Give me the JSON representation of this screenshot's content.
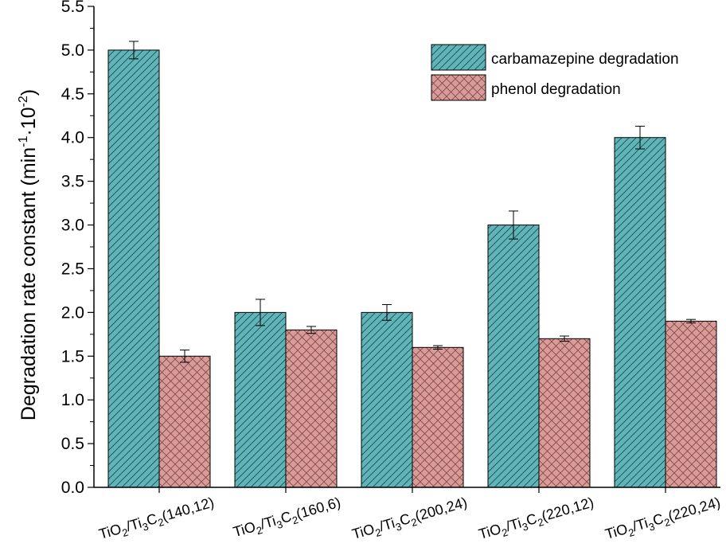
{
  "chart_data": {
    "type": "bar",
    "title": "",
    "ylabel_parts": [
      "Degradation rate constant (min",
      "-1",
      "·10",
      "-2",
      ")"
    ],
    "xlabel": "",
    "ylim": [
      0,
      5.5
    ],
    "y_ticks": [
      "0.0",
      "0.5",
      "1.0",
      "1.5",
      "2.0",
      "2.5",
      "3.0",
      "3.5",
      "4.0",
      "4.5",
      "5.0",
      "5.5"
    ],
    "categories": [
      {
        "parts": [
          "TiO",
          "2",
          "/Ti",
          "3",
          "C",
          "2",
          "(140,12)"
        ]
      },
      {
        "parts": [
          "TiO",
          "2",
          "/Ti",
          "3",
          "C",
          "2",
          "(160,6)"
        ]
      },
      {
        "parts": [
          "TiO",
          "2",
          "/Ti",
          "3",
          "C",
          "2",
          "(200,24)"
        ]
      },
      {
        "parts": [
          "TiO",
          "2",
          "/Ti",
          "3",
          "C",
          "2",
          "(220,12)"
        ]
      },
      {
        "parts": [
          "TiO",
          "2",
          "/Ti",
          "3",
          "C",
          "2",
          "(220,24)"
        ]
      }
    ],
    "series": [
      {
        "name": "carbamazepine degradation",
        "values": [
          5.0,
          2.0,
          2.0,
          3.0,
          4.0
        ],
        "errors": [
          0.1,
          0.15,
          0.09,
          0.16,
          0.13
        ],
        "color": "#5fb5b8",
        "pattern": "hatch-diagonal"
      },
      {
        "name": "phenol degradation",
        "values": [
          1.5,
          1.8,
          1.6,
          1.7,
          1.9
        ],
        "errors": [
          0.07,
          0.04,
          0.02,
          0.03,
          0.02
        ],
        "color": "#d99a98",
        "pattern": "crosshatch"
      }
    ],
    "legend_position": "top-right",
    "grid": false
  }
}
